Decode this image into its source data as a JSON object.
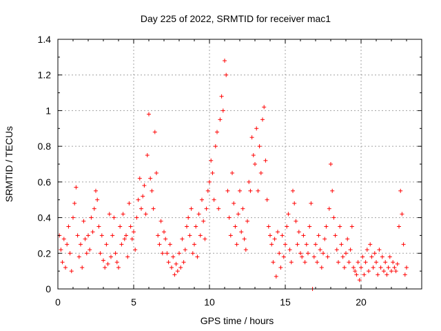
{
  "chart_data": {
    "type": "scatter",
    "title": "Day 225 of 2022, SRMTID for receiver mac1",
    "xlabel": "GPS time / hours",
    "ylabel": "SRMTID / TECUs",
    "xlim": [
      0,
      24
    ],
    "ylim": [
      0,
      1.4
    ],
    "xticks": [
      0,
      5,
      10,
      15,
      20
    ],
    "xtick_labels": [
      "0",
      "5",
      "10",
      "15",
      "20"
    ],
    "yticks": [
      0,
      0.2,
      0.4,
      0.6,
      0.8,
      1,
      1.2,
      1.4
    ],
    "ytick_labels": [
      "0",
      "0.2",
      "0.4",
      "0.6",
      "0.8",
      "1",
      "1.2",
      "1.4"
    ],
    "grid": true,
    "marker": "+",
    "color": "#ff0000",
    "series": [
      {
        "name": "SRMTID",
        "points": [
          [
            0.1,
            0.3
          ],
          [
            0.2,
            0.22
          ],
          [
            0.3,
            0.15
          ],
          [
            0.4,
            0.28
          ],
          [
            0.5,
            0.12
          ],
          [
            0.6,
            0.25
          ],
          [
            0.7,
            0.35
          ],
          [
            0.8,
            0.2
          ],
          [
            0.9,
            0.1
          ],
          [
            1.0,
            0.4
          ],
          [
            1.1,
            0.48
          ],
          [
            1.2,
            0.57
          ],
          [
            1.3,
            0.3
          ],
          [
            1.4,
            0.18
          ],
          [
            1.5,
            0.25
          ],
          [
            1.6,
            0.12
          ],
          [
            1.7,
            0.38
          ],
          [
            1.8,
            0.28
          ],
          [
            1.9,
            0.2
          ],
          [
            2.0,
            0.3
          ],
          [
            2.1,
            0.22
          ],
          [
            2.2,
            0.4
          ],
          [
            2.3,
            0.32
          ],
          [
            2.4,
            0.45
          ],
          [
            2.5,
            0.55
          ],
          [
            2.6,
            0.5
          ],
          [
            2.7,
            0.35
          ],
          [
            2.8,
            0.2
          ],
          [
            2.9,
            0.3
          ],
          [
            3.0,
            0.16
          ],
          [
            3.1,
            0.12
          ],
          [
            3.2,
            0.25
          ],
          [
            3.3,
            0.14
          ],
          [
            3.4,
            0.42
          ],
          [
            3.5,
            0.18
          ],
          [
            3.6,
            0.3
          ],
          [
            3.7,
            0.4
          ],
          [
            3.8,
            0.2
          ],
          [
            3.9,
            0.15
          ],
          [
            4.0,
            0.12
          ],
          [
            4.1,
            0.35
          ],
          [
            4.2,
            0.25
          ],
          [
            4.3,
            0.42
          ],
          [
            4.4,
            0.28
          ],
          [
            4.5,
            0.3
          ],
          [
            4.6,
            0.18
          ],
          [
            4.7,
            0.48
          ],
          [
            4.8,
            0.35
          ],
          [
            4.9,
            0.28
          ],
          [
            5.0,
            0.32
          ],
          [
            5.1,
            0.22
          ],
          [
            5.2,
            0.4
          ],
          [
            5.3,
            0.5
          ],
          [
            5.4,
            0.62
          ],
          [
            5.5,
            0.45
          ],
          [
            5.6,
            0.52
          ],
          [
            5.7,
            0.58
          ],
          [
            5.8,
            0.42
          ],
          [
            5.9,
            0.75
          ],
          [
            6.0,
            0.98
          ],
          [
            6.1,
            0.62
          ],
          [
            6.2,
            0.55
          ],
          [
            6.3,
            0.45
          ],
          [
            6.4,
            0.88
          ],
          [
            6.5,
            0.65
          ],
          [
            6.6,
            0.3
          ],
          [
            6.7,
            0.25
          ],
          [
            6.8,
            0.38
          ],
          [
            6.9,
            0.2
          ],
          [
            7.0,
            0.32
          ],
          [
            7.1,
            0.28
          ],
          [
            7.2,
            0.2
          ],
          [
            7.3,
            0.15
          ],
          [
            7.4,
            0.25
          ],
          [
            7.5,
            0.12
          ],
          [
            7.6,
            0.18
          ],
          [
            7.7,
            0.08
          ],
          [
            7.8,
            0.14
          ],
          [
            7.9,
            0.1
          ],
          [
            8.0,
            0.2
          ],
          [
            8.1,
            0.12
          ],
          [
            8.2,
            0.28
          ],
          [
            8.3,
            0.15
          ],
          [
            8.4,
            0.22
          ],
          [
            8.5,
            0.35
          ],
          [
            8.6,
            0.4
          ],
          [
            8.7,
            0.3
          ],
          [
            8.8,
            0.45
          ],
          [
            8.9,
            0.2
          ],
          [
            9.0,
            0.25
          ],
          [
            9.1,
            0.35
          ],
          [
            9.2,
            0.18
          ],
          [
            9.3,
            0.42
          ],
          [
            9.4,
            0.3
          ],
          [
            9.5,
            0.5
          ],
          [
            9.6,
            0.38
          ],
          [
            9.7,
            0.28
          ],
          [
            9.8,
            0.45
          ],
          [
            9.9,
            0.55
          ],
          [
            10.0,
            0.6
          ],
          [
            10.1,
            0.72
          ],
          [
            10.2,
            0.65
          ],
          [
            10.3,
            0.5
          ],
          [
            10.4,
            0.8
          ],
          [
            10.5,
            0.88
          ],
          [
            10.6,
            0.45
          ],
          [
            10.7,
            0.95
          ],
          [
            10.8,
            1.08
          ],
          [
            10.9,
            1.0
          ],
          [
            11.0,
            1.28
          ],
          [
            11.1,
            1.2
          ],
          [
            11.2,
            0.55
          ],
          [
            11.3,
            0.4
          ],
          [
            11.4,
            0.3
          ],
          [
            11.5,
            0.65
          ],
          [
            11.6,
            0.48
          ],
          [
            11.7,
            0.35
          ],
          [
            11.8,
            0.25
          ],
          [
            11.9,
            0.42
          ],
          [
            12.0,
            0.55
          ],
          [
            12.1,
            0.32
          ],
          [
            12.2,
            0.45
          ],
          [
            12.3,
            0.28
          ],
          [
            12.4,
            0.22
          ],
          [
            12.5,
            0.38
          ],
          [
            12.6,
            0.6
          ],
          [
            12.7,
            0.55
          ],
          [
            12.8,
            0.85
          ],
          [
            12.9,
            0.75
          ],
          [
            13.0,
            0.7
          ],
          [
            13.1,
            0.9
          ],
          [
            13.2,
            0.55
          ],
          [
            13.3,
            0.8
          ],
          [
            13.4,
            0.65
          ],
          [
            13.5,
            0.95
          ],
          [
            13.6,
            1.02
          ],
          [
            13.7,
            0.72
          ],
          [
            13.8,
            0.5
          ],
          [
            13.9,
            0.35
          ],
          [
            14.0,
            0.3
          ],
          [
            14.1,
            0.25
          ],
          [
            14.2,
            0.15
          ],
          [
            14.3,
            0.28
          ],
          [
            14.4,
            0.07
          ],
          [
            14.5,
            0.32
          ],
          [
            14.6,
            0.2
          ],
          [
            14.7,
            0.12
          ],
          [
            14.8,
            0.3
          ],
          [
            14.9,
            0.18
          ],
          [
            15.0,
            0.25
          ],
          [
            15.1,
            0.35
          ],
          [
            15.2,
            0.42
          ],
          [
            15.3,
            0.22
          ],
          [
            15.4,
            0.15
          ],
          [
            15.5,
            0.55
          ],
          [
            15.6,
            0.48
          ],
          [
            15.7,
            0.38
          ],
          [
            15.8,
            0.25
          ],
          [
            15.9,
            0.32
          ],
          [
            16.0,
            0.2
          ],
          [
            16.1,
            0.18
          ],
          [
            16.2,
            0.3
          ],
          [
            16.3,
            0.15
          ],
          [
            16.4,
            0.25
          ],
          [
            16.5,
            0.2
          ],
          [
            16.6,
            0.35
          ],
          [
            16.7,
            0.48
          ],
          [
            16.8,
            0.0
          ],
          [
            16.9,
            0.18
          ],
          [
            17.0,
            0.25
          ],
          [
            17.1,
            0.15
          ],
          [
            17.2,
            0.3
          ],
          [
            17.3,
            0.22
          ],
          [
            17.4,
            0.12
          ],
          [
            17.5,
            0.2
          ],
          [
            17.6,
            0.28
          ],
          [
            17.7,
            0.35
          ],
          [
            17.8,
            0.18
          ],
          [
            17.9,
            0.45
          ],
          [
            18.0,
            0.7
          ],
          [
            18.1,
            0.55
          ],
          [
            18.2,
            0.4
          ],
          [
            18.3,
            0.3
          ],
          [
            18.4,
            0.22
          ],
          [
            18.5,
            0.15
          ],
          [
            18.6,
            0.35
          ],
          [
            18.7,
            0.25
          ],
          [
            18.8,
            0.18
          ],
          [
            18.9,
            0.12
          ],
          [
            19.0,
            0.2
          ],
          [
            19.1,
            0.28
          ],
          [
            19.2,
            0.15
          ],
          [
            19.3,
            0.22
          ],
          [
            19.4,
            0.35
          ],
          [
            19.5,
            0.12
          ],
          [
            19.6,
            0.1
          ],
          [
            19.7,
            0.08
          ],
          [
            19.8,
            0.15
          ],
          [
            19.9,
            0.05
          ],
          [
            20.0,
            0.12
          ],
          [
            20.1,
            0.18
          ],
          [
            20.2,
            0.08
          ],
          [
            20.3,
            0.15
          ],
          [
            20.4,
            0.22
          ],
          [
            20.5,
            0.1
          ],
          [
            20.6,
            0.25
          ],
          [
            20.7,
            0.18
          ],
          [
            20.8,
            0.12
          ],
          [
            20.9,
            0.2
          ],
          [
            21.0,
            0.15
          ],
          [
            21.1,
            0.08
          ],
          [
            21.2,
            0.22
          ],
          [
            21.3,
            0.12
          ],
          [
            21.4,
            0.18
          ],
          [
            21.5,
            0.1
          ],
          [
            21.6,
            0.15
          ],
          [
            21.7,
            0.08
          ],
          [
            21.8,
            0.12
          ],
          [
            21.9,
            0.18
          ],
          [
            22.0,
            0.1
          ],
          [
            22.1,
            0.15
          ],
          [
            22.2,
            0.12
          ],
          [
            22.3,
            0.1
          ],
          [
            22.4,
            0.14
          ],
          [
            22.5,
            0.35
          ],
          [
            22.6,
            0.55
          ],
          [
            22.7,
            0.42
          ],
          [
            22.8,
            0.25
          ],
          [
            22.9,
            0.08
          ],
          [
            23.0,
            0.12
          ]
        ]
      }
    ]
  }
}
